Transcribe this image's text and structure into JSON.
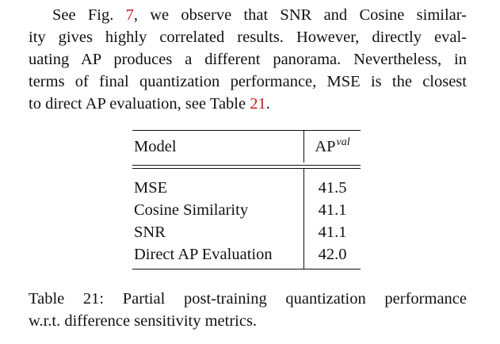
{
  "paragraph": {
    "line1_a": "See Fig. ",
    "line1_ref": "7",
    "line1_b": ", we observe that SNR and Cosine similar-",
    "line2": "ity gives highly correlated results. However, directly eval-",
    "line3": "uating AP produces a different panorama. Nevertheless, in",
    "line4": "terms of final quantization performance, MSE is the closest",
    "line5_a": "to direct AP evaluation, see Table ",
    "line5_ref": "21",
    "line5_b": "."
  },
  "table": {
    "header_model": "Model",
    "header_metric": "AP",
    "header_metric_sup": "val",
    "rows": [
      {
        "model": "MSE",
        "value": "41.5"
      },
      {
        "model": "Cosine Similarity",
        "value": "41.1"
      },
      {
        "model": "SNR",
        "value": "41.1"
      },
      {
        "model": "Direct AP Evaluation",
        "value": "42.0"
      }
    ]
  },
  "caption": {
    "line1": "Table 21: Partial post-training quantization performance",
    "line2": "w.r.t. difference sensitivity metrics."
  },
  "colors": {
    "reference_link": "#c41e1e",
    "text": "#111111"
  }
}
